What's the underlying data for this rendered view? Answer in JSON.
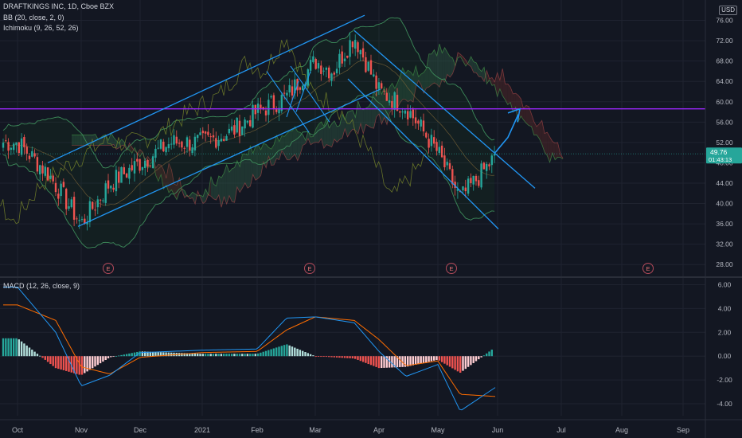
{
  "header": {
    "symbol_line": "DRAFTKINGS INC, 1D, Cboe BZX",
    "bb_legend": "BB (20, close, 2, 0)",
    "ichimoku_legend": "Ichimoku (9, 26, 52, 26)",
    "macd_legend": "MACD (12, 26, close, 9)",
    "currency": "USD"
  },
  "price_badge": {
    "price": "49.76",
    "countdown": "01:43:13",
    "color": "#26a69a"
  },
  "colors": {
    "background": "#131722",
    "grid": "#1f2330",
    "up": "#26a69a",
    "down": "#ef5350",
    "channel": "#2196f3",
    "horizontal_level": "#9c27ff",
    "bb": "#2e7d5b",
    "ichimoku_cloud_up": "#2e5c45",
    "ichimoku_cloud_down": "#5c2a2a",
    "macd_line": "#2196f3",
    "signal_line": "#ff6d00"
  },
  "chart_data": [
    {
      "type": "candlestick",
      "title": "DRAFTKINGS INC, 1D, Cboe BZX",
      "x_ticks": [
        "Oct",
        "Nov",
        "Dec",
        "2021",
        "Feb",
        "Mar",
        "Apr",
        "May",
        "Jun",
        "Jul",
        "Aug",
        "Sep"
      ],
      "y_ticks": [
        28,
        32,
        36,
        40,
        44,
        48,
        52,
        56,
        60,
        64,
        68,
        72,
        76
      ],
      "ylim": [
        26,
        80
      ],
      "horizontal_level": 58.6,
      "last_price": 49.76,
      "earnings_markers": [
        "E",
        "E",
        "E",
        "E"
      ],
      "price_path": [
        [
          "Oct",
          52
        ],
        [
          "Oct-15",
          46
        ],
        [
          "Nov",
          36
        ],
        [
          "Nov-20",
          44
        ],
        [
          "Dec",
          48
        ],
        [
          "Dec-20",
          52
        ],
        [
          "2021",
          52
        ],
        [
          "Jan-20",
          54
        ],
        [
          "Feb",
          58
        ],
        [
          "Feb-20",
          61
        ],
        [
          "Mar",
          68
        ],
        [
          "Mar-10",
          66
        ],
        [
          "Mar-20",
          73
        ],
        [
          "Apr",
          62
        ],
        [
          "Apr-20",
          59
        ],
        [
          "May",
          50
        ],
        [
          "May-12",
          41
        ],
        [
          "May-20",
          45
        ],
        [
          "Jun",
          49.76
        ]
      ]
    },
    {
      "type": "bar",
      "title": "MACD (12, 26, close, 9)",
      "y_ticks": [
        -4.0,
        -2.0,
        0.0,
        2.0,
        4.0,
        6.0
      ],
      "ylim": [
        -5,
        6.5
      ],
      "series": [
        {
          "name": "MACD",
          "kind": "line"
        },
        {
          "name": "Signal",
          "kind": "line"
        },
        {
          "name": "Histogram",
          "kind": "bar"
        }
      ],
      "macd_path": [
        [
          "Oct",
          5.8
        ],
        [
          "Oct-20",
          2.0
        ],
        [
          "Nov",
          -2.5
        ],
        [
          "Nov-20",
          -1.6
        ],
        [
          "Dec",
          0.3
        ],
        [
          "2021",
          0.5
        ],
        [
          "Feb",
          0.6
        ],
        [
          "Feb-20",
          3.2
        ],
        [
          "Mar",
          3.3
        ],
        [
          "Mar-20",
          2.8
        ],
        [
          "Apr",
          0.4
        ],
        [
          "Apr-20",
          -1.7
        ],
        [
          "May",
          -0.7
        ],
        [
          "May-15",
          -4.6
        ],
        [
          "Jun",
          -2.5
        ]
      ],
      "signal_path": [
        [
          "Oct",
          4.3
        ],
        [
          "Oct-20",
          3.0
        ],
        [
          "Nov",
          -0.9
        ],
        [
          "Nov-20",
          -1.5
        ],
        [
          "Dec",
          -0.1
        ],
        [
          "2021",
          0.3
        ],
        [
          "Feb",
          0.4
        ],
        [
          "Feb-20",
          2.2
        ],
        [
          "Mar",
          3.3
        ],
        [
          "Mar-20",
          3.0
        ],
        [
          "Apr",
          1.4
        ],
        [
          "Apr-20",
          -0.8
        ],
        [
          "May",
          -0.4
        ],
        [
          "May-15",
          -3.2
        ],
        [
          "Jun",
          -3.4
        ]
      ]
    }
  ]
}
